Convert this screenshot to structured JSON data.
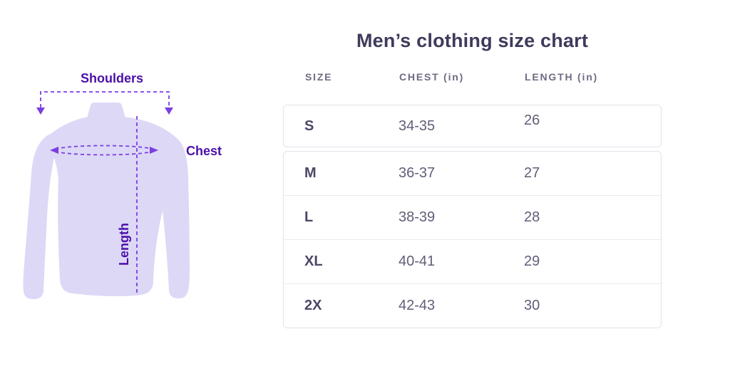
{
  "title": "Men’s clothing size chart",
  "annotations": {
    "shoulders": "Shoulders",
    "chest": "Chest",
    "length": "Length"
  },
  "colors": {
    "label_purple": "#4c10a8",
    "dash_purple": "#7a3fe0",
    "shirt_fill": "#dcd8f6",
    "title_text": "#3e3b5b",
    "header_text": "#6e6b84",
    "cell_text": "#615e78",
    "card_border": "#e3e2ea"
  },
  "chart_data": {
    "type": "table",
    "title": "Men’s clothing size chart",
    "columns": [
      "SIZE",
      "CHEST (in)",
      "LENGTH (in)"
    ],
    "rows": [
      {
        "size": "S",
        "chest": "34-35",
        "length": "26"
      },
      {
        "size": "M",
        "chest": "36-37",
        "length": "27"
      },
      {
        "size": "L",
        "chest": "38-39",
        "length": "28"
      },
      {
        "size": "XL",
        "chest": "40-41",
        "length": "29"
      },
      {
        "size": "2X",
        "chest": "42-43",
        "length": "30"
      }
    ]
  }
}
